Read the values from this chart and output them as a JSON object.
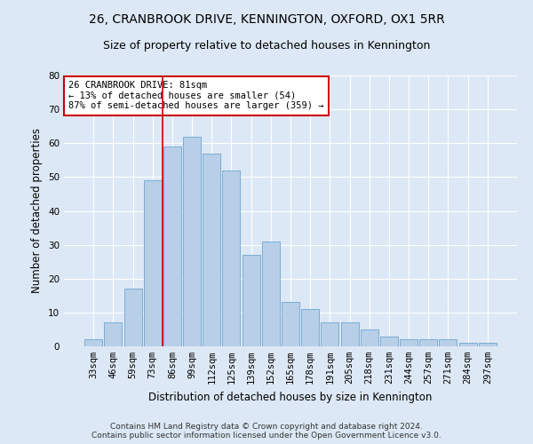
{
  "title": "26, CRANBROOK DRIVE, KENNINGTON, OXFORD, OX1 5RR",
  "subtitle": "Size of property relative to detached houses in Kennington",
  "xlabel": "Distribution of detached houses by size in Kennington",
  "ylabel": "Number of detached properties",
  "categories": [
    "33sqm",
    "46sqm",
    "59sqm",
    "73sqm",
    "86sqm",
    "99sqm",
    "112sqm",
    "125sqm",
    "139sqm",
    "152sqm",
    "165sqm",
    "178sqm",
    "191sqm",
    "205sqm",
    "218sqm",
    "231sqm",
    "244sqm",
    "257sqm",
    "271sqm",
    "284sqm",
    "297sqm"
  ],
  "values": [
    2,
    7,
    17,
    49,
    59,
    62,
    57,
    52,
    27,
    31,
    13,
    11,
    7,
    7,
    5,
    3,
    2,
    2,
    2,
    1,
    1
  ],
  "bar_color": "#b8cfe8",
  "bar_edge_color": "#7aadd4",
  "highlight_line_color": "#cc0000",
  "highlight_bin_index": 4,
  "annotation_text": "26 CRANBROOK DRIVE: 81sqm\n← 13% of detached houses are smaller (54)\n87% of semi-detached houses are larger (359) →",
  "annotation_box_facecolor": "#ffffff",
  "annotation_box_edgecolor": "#cc0000",
  "ylim": [
    0,
    80
  ],
  "yticks": [
    0,
    10,
    20,
    30,
    40,
    50,
    60,
    70,
    80
  ],
  "bg_color": "#dce8f5",
  "plot_bg_color": "#dce8f5",
  "footer_line1": "Contains HM Land Registry data © Crown copyright and database right 2024.",
  "footer_line2": "Contains public sector information licensed under the Open Government Licence v3.0.",
  "title_fontsize": 10,
  "subtitle_fontsize": 9,
  "xlabel_fontsize": 8.5,
  "ylabel_fontsize": 8.5,
  "tick_fontsize": 7.5,
  "annotation_fontsize": 7.5,
  "footer_fontsize": 6.5
}
